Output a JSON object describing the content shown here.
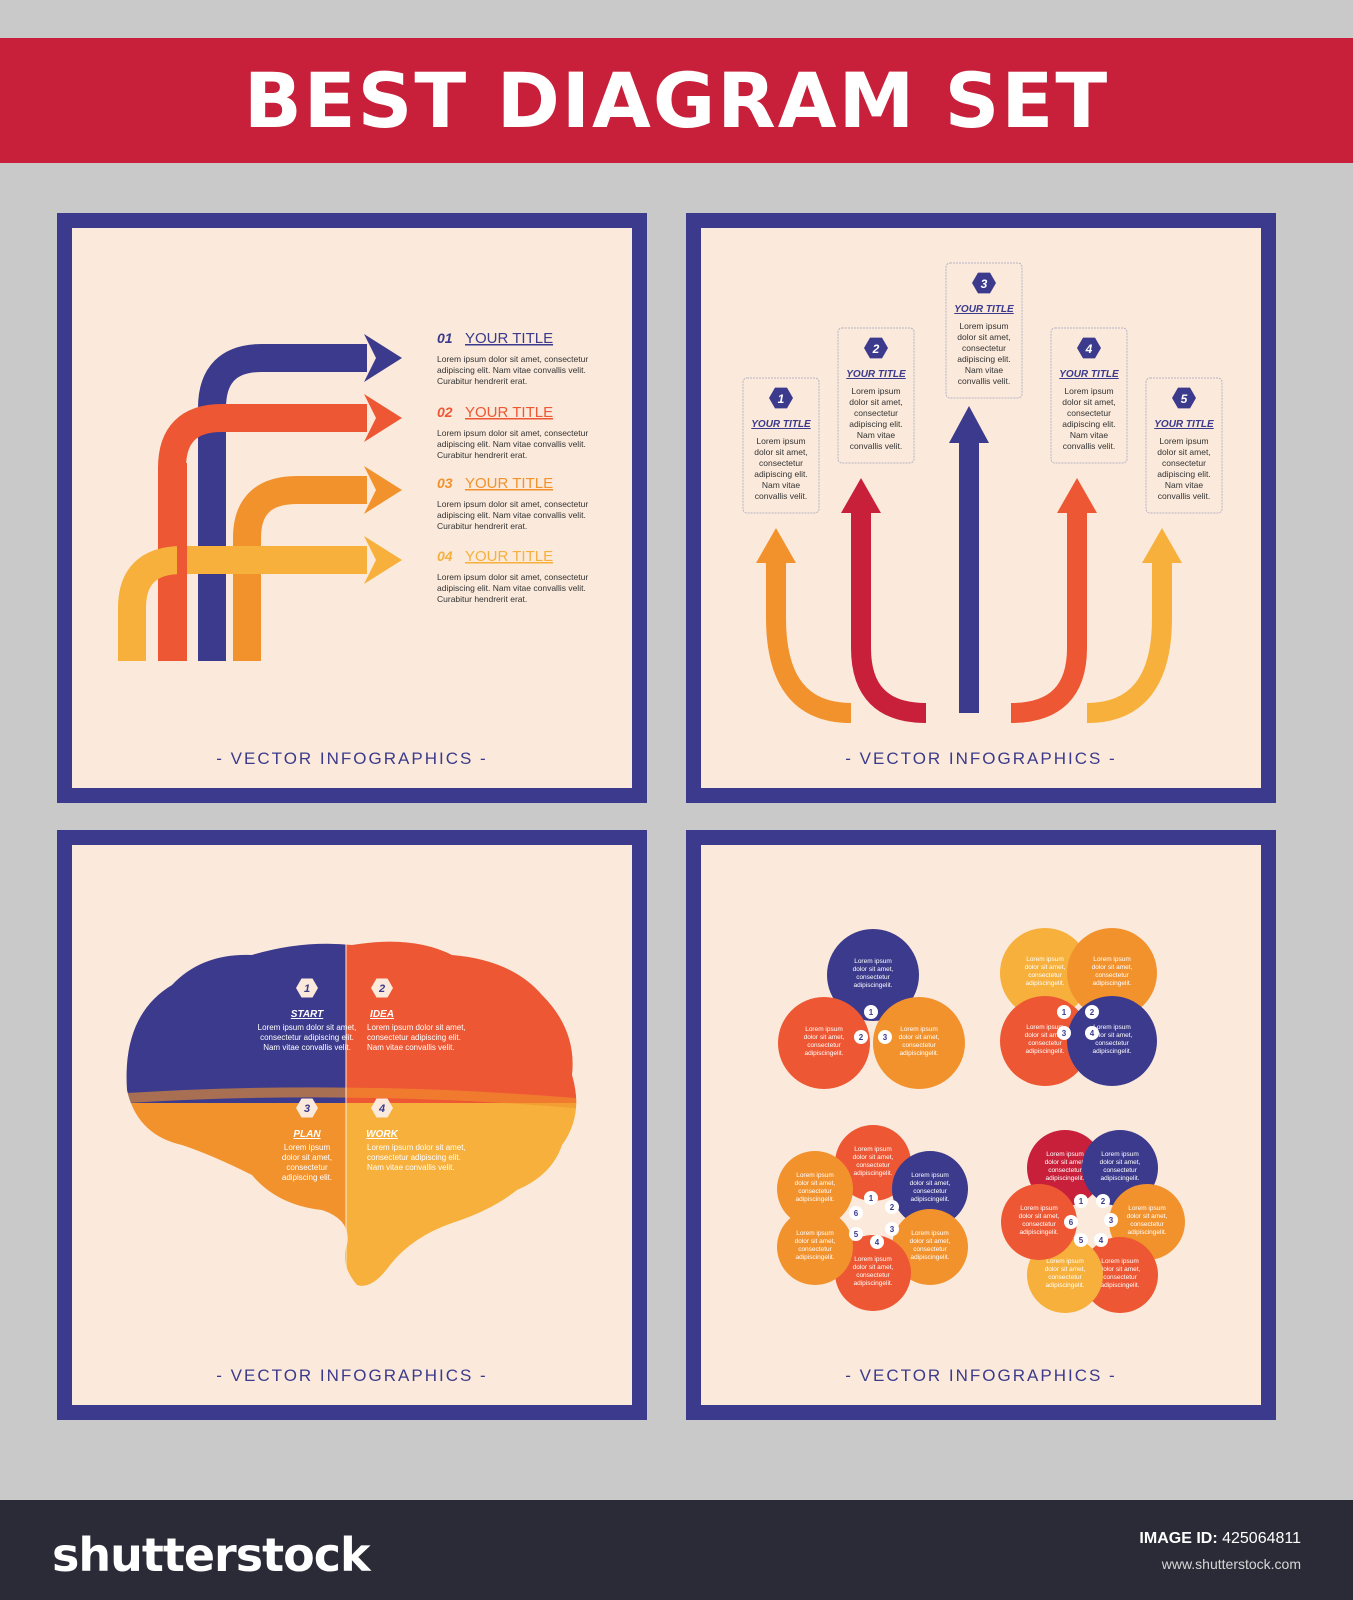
{
  "banner": {
    "title": "BEST DIAGRAM SET"
  },
  "footer_caption": "- VECTOR INFOGRAPHICS -",
  "panel1": {
    "items": [
      {
        "num": "01",
        "title": "YOUR TITLE",
        "color": "#3b3a8c",
        "lines": [
          "Lorem ipsum dolor sit amet, consectetur",
          "adipiscing elit. Nam vitae convallis velit.",
          "Curabitur hendrerit erat."
        ]
      },
      {
        "num": "02",
        "title": "YOUR TITLE",
        "color": "#ee5733",
        "lines": [
          "Lorem ipsum dolor sit amet, consectetur",
          "adipiscing elit. Nam vitae convallis velit.",
          "Curabitur hendrerit erat."
        ]
      },
      {
        "num": "03",
        "title": "YOUR TITLE",
        "color": "#f2922d",
        "lines": [
          "Lorem ipsum dolor sit amet, consectetur",
          "adipiscing elit. Nam vitae convallis velit.",
          "Curabitur hendrerit erat."
        ]
      },
      {
        "num": "04",
        "title": "YOUR TITLE",
        "color": "#f6b03b",
        "lines": [
          "Lorem ipsum dolor sit amet, consectetur",
          "adipiscing elit. Nam vitae convallis velit.",
          "Curabitur hendrerit erat."
        ]
      }
    ]
  },
  "panel2": {
    "items": [
      {
        "num": "1",
        "title": "YOUR TITLE",
        "lines": [
          "Lorem ipsum",
          "dolor sit amet,",
          "consectetur",
          "adipiscing elit.",
          "Nam vitae",
          "convallis velit."
        ]
      },
      {
        "num": "2",
        "title": "YOUR TITLE",
        "lines": [
          "Lorem ipsum",
          "dolor sit amet,",
          "consectetur",
          "adipiscing elit.",
          "Nam vitae",
          "convallis velit."
        ]
      },
      {
        "num": "3",
        "title": "YOUR TITLE",
        "lines": [
          "Lorem ipsum",
          "dolor sit amet,",
          "consectetur",
          "adipiscing elit.",
          "Nam vitae",
          "convallis velit."
        ]
      },
      {
        "num": "4",
        "title": "YOUR TITLE",
        "lines": [
          "Lorem ipsum",
          "dolor sit amet,",
          "consectetur",
          "adipiscing elit.",
          "Nam vitae",
          "convallis velit."
        ]
      },
      {
        "num": "5",
        "title": "YOUR TITLE",
        "lines": [
          "Lorem ipsum",
          "dolor sit amet,",
          "consectetur",
          "adipiscing elit.",
          "Nam vitae",
          "convallis velit."
        ]
      }
    ]
  },
  "panel3": {
    "items": [
      {
        "num": "1",
        "title": "START",
        "lines": [
          "Lorem ipsum dolor sit amet,",
          "consectetur adipiscing elit.",
          "Nam vitae convallis velit."
        ]
      },
      {
        "num": "2",
        "title": "IDEA",
        "lines": [
          "Lorem ipsum dolor sit amet,",
          "consectetur adipiscing elit.",
          "Nam vitae convallis velit."
        ]
      },
      {
        "num": "3",
        "title": "PLAN",
        "lines": [
          "Lorem ipsum",
          "dolor sit amet,",
          "consectetur",
          "adipiscing elit."
        ]
      },
      {
        "num": "4",
        "title": "WORK",
        "lines": [
          "Lorem ipsum dolor sit amet,",
          "consectetur adipiscing elit.",
          "Nam vitae convallis velit."
        ]
      }
    ]
  },
  "panel4": {
    "petal_text": [
      "Lorem ipsum",
      "dolor sit amet,",
      "consectetur",
      "adipiscingelit."
    ],
    "numbers": [
      "1",
      "2",
      "3",
      "4",
      "5",
      "6"
    ]
  },
  "bottom": {
    "logo": "shutterstock",
    "image_id_label": "IMAGE ID:",
    "image_id": "425064811",
    "url": "www.shutterstock.com"
  },
  "colors": {
    "navy": "#3b3a8c",
    "red": "#c8203a",
    "orange_red": "#ee5733",
    "orange": "#f2922d",
    "yellow": "#f6b03b",
    "cream": "#fbeadb"
  }
}
